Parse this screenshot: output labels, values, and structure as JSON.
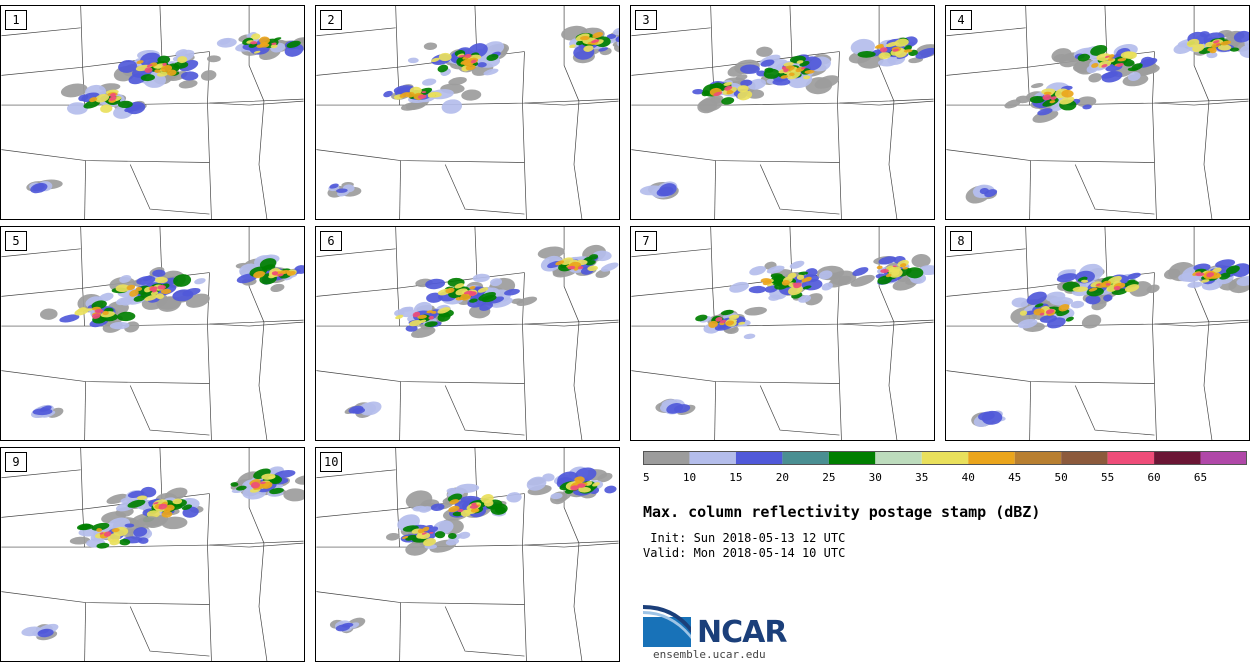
{
  "panels": [
    {
      "label": "1"
    },
    {
      "label": "2"
    },
    {
      "label": "3"
    },
    {
      "label": "4"
    },
    {
      "label": "5"
    },
    {
      "label": "6"
    },
    {
      "label": "7"
    },
    {
      "label": "8"
    },
    {
      "label": "9"
    },
    {
      "label": "10"
    }
  ],
  "legend": {
    "colors": [
      "#9c9c9c",
      "#b4bdeb",
      "#5059d9",
      "#4a8f92",
      "#007f00",
      "#bddcbd",
      "#e9e05c",
      "#eaa51c",
      "#b87f31",
      "#8c5a3c",
      "#ee4d79",
      "#6b1635",
      "#b048a8"
    ],
    "ticks": [
      "5",
      "10",
      "15",
      "20",
      "25",
      "30",
      "35",
      "40",
      "45",
      "50",
      "55",
      "60",
      "65"
    ]
  },
  "title": "Max. column reflectivity postage stamp (dBZ)",
  "init_line": " Init: Sun 2018-05-13 12 UTC",
  "valid_line": "Valid: Mon 2018-05-14 10 UTC",
  "logo": {
    "name": "NCAR",
    "url": "ensemble.ucar.edu"
  }
}
